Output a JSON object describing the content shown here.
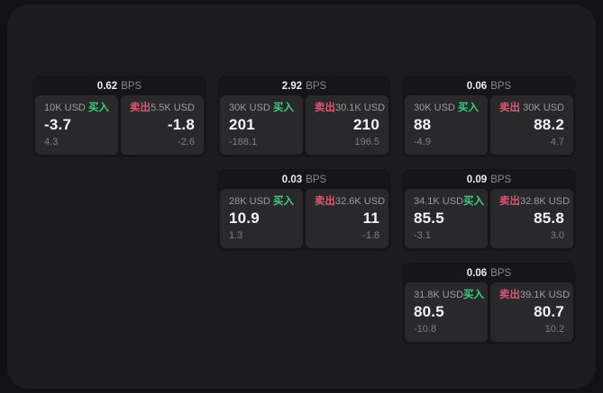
{
  "labels": {
    "unit": "BPS",
    "buy": "买入",
    "sell": "卖出"
  },
  "colors": {
    "page_bg": "#121214",
    "panel_bg": "#1c1c1e",
    "card_bg": "#161618",
    "pane_bg": "#29292b",
    "buy_accent": "#3ecd7e",
    "sell_accent": "#e05672"
  },
  "cards": [
    {
      "bps": "0.62",
      "buy": {
        "amount": "10K USD",
        "price": "-3.7",
        "secondary": "4.3"
      },
      "sell": {
        "amount": "5.5K USD",
        "price": "-1.8",
        "secondary": "-2.6"
      }
    },
    {
      "bps": "2.92",
      "buy": {
        "amount": "30K USD",
        "price": "201",
        "secondary": "-188.1"
      },
      "sell": {
        "amount": "30.1K USD",
        "price": "210",
        "secondary": "196.5"
      }
    },
    {
      "bps": "0.06",
      "buy": {
        "amount": "30K USD",
        "price": "88",
        "secondary": "-4.9"
      },
      "sell": {
        "amount": "30K USD",
        "price": "88.2",
        "secondary": "4.7"
      }
    },
    {
      "bps": "0.03",
      "buy": {
        "amount": "28K USD",
        "price": "10.9",
        "secondary": "1.3"
      },
      "sell": {
        "amount": "32.6K USD",
        "price": "11",
        "secondary": "-1.8"
      }
    },
    {
      "bps": "0.09",
      "buy": {
        "amount": "34.1K USD",
        "price": "85.5",
        "secondary": "-3.1"
      },
      "sell": {
        "amount": "32.8K USD",
        "price": "85.8",
        "secondary": "3.0"
      }
    },
    {
      "bps": "0.06",
      "buy": {
        "amount": "31.8K USD",
        "price": "80.5",
        "secondary": "-10.8"
      },
      "sell": {
        "amount": "39.1K USD",
        "price": "80.7",
        "secondary": "10.2"
      }
    }
  ]
}
